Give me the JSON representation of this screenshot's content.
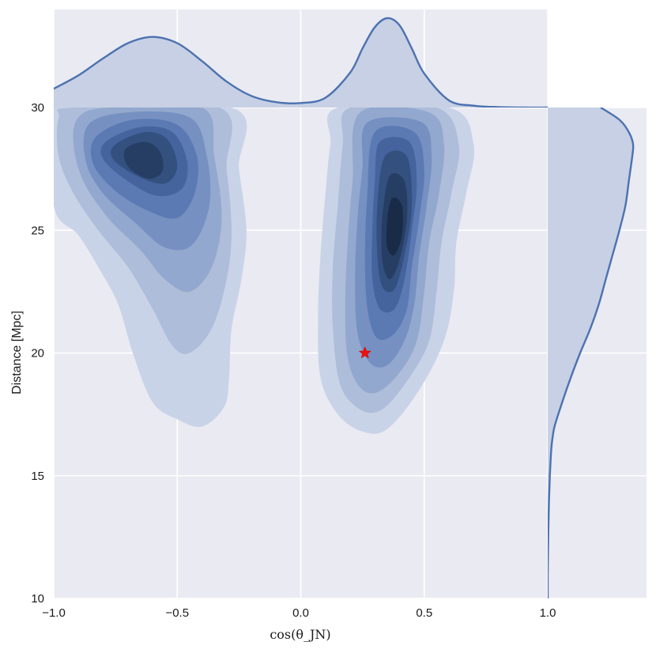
{
  "chart_data": {
    "type": "joint-kde",
    "xlabel": "cos(θ_JN)",
    "ylabel": "Distance [Mpc]",
    "xlim": [
      -1.0,
      1.0
    ],
    "ylim": [
      10,
      30
    ],
    "x_ticks": [
      -1.0,
      -0.5,
      0.0,
      0.5,
      1.0
    ],
    "x_tick_labels": [
      "−1.0",
      "−0.5",
      "0.0",
      "0.5",
      "1.0"
    ],
    "y_ticks": [
      10,
      15,
      20,
      25,
      30
    ],
    "y_tick_labels": [
      "10",
      "15",
      "20",
      "25",
      "30"
    ],
    "grid": true,
    "background": "#eaeaf2",
    "colors": {
      "line": "#4c72b0",
      "marginal_fill": "#c5cfe3",
      "levels": [
        "#c9d3e8",
        "#aebdd9",
        "#93a8ce",
        "#7690c2",
        "#5b79b3",
        "#45649e",
        "#33507f",
        "#263e64",
        "#1a2b47",
        "#0b1220"
      ],
      "marker": "#ee1111"
    },
    "modes": [
      {
        "center": {
          "x": -0.65,
          "y": 27.8
        },
        "levels": [
          {
            "level": 1,
            "points": [
              [
                -1.0,
                30.0
              ],
              [
                -0.28,
                30.0
              ],
              [
                -0.25,
                27.5
              ],
              [
                -0.22,
                25.0
              ],
              [
                -0.24,
                23.0
              ],
              [
                -0.28,
                21.0
              ],
              [
                -0.29,
                19.0
              ],
              [
                -0.31,
                17.8
              ],
              [
                -0.4,
                17.0
              ],
              [
                -0.5,
                17.3
              ],
              [
                -0.6,
                18.0
              ],
              [
                -0.68,
                20.0
              ],
              [
                -0.74,
                22.0
              ],
              [
                -0.82,
                23.5
              ],
              [
                -0.9,
                24.8
              ],
              [
                -1.0,
                26.0
              ]
            ]
          },
          {
            "level": 2,
            "points": [
              [
                -0.98,
                29.6
              ],
              [
                -0.92,
                30.0
              ],
              [
                -0.33,
                30.0
              ],
              [
                -0.3,
                27.5
              ],
              [
                -0.28,
                25.0
              ],
              [
                -0.3,
                23.0
              ],
              [
                -0.36,
                21.0
              ],
              [
                -0.45,
                20.0
              ],
              [
                -0.52,
                20.3
              ],
              [
                -0.6,
                21.8
              ],
              [
                -0.7,
                23.5
              ],
              [
                -0.82,
                25.0
              ],
              [
                -0.92,
                26.5
              ],
              [
                -0.98,
                28.0
              ]
            ]
          },
          {
            "level": 3,
            "points": [
              [
                -0.9,
                29.6
              ],
              [
                -0.78,
                30.0
              ],
              [
                -0.4,
                30.0
              ],
              [
                -0.35,
                28.0
              ],
              [
                -0.32,
                25.5
              ],
              [
                -0.36,
                23.5
              ],
              [
                -0.45,
                22.5
              ],
              [
                -0.55,
                23.0
              ],
              [
                -0.65,
                24.2
              ],
              [
                -0.78,
                25.5
              ],
              [
                -0.88,
                27.0
              ],
              [
                -0.92,
                28.5
              ]
            ]
          },
          {
            "level": 4,
            "points": [
              [
                -0.86,
                29.3
              ],
              [
                -0.7,
                29.8
              ],
              [
                -0.45,
                29.6
              ],
              [
                -0.38,
                28.0
              ],
              [
                -0.37,
                26.0
              ],
              [
                -0.44,
                24.4
              ],
              [
                -0.55,
                24.3
              ],
              [
                -0.67,
                25.3
              ],
              [
                -0.8,
                26.5
              ],
              [
                -0.87,
                27.8
              ]
            ]
          },
          {
            "level": 5,
            "points": [
              [
                -0.83,
                28.8
              ],
              [
                -0.68,
                29.5
              ],
              [
                -0.5,
                29.3
              ],
              [
                -0.42,
                28.0
              ],
              [
                -0.43,
                26.5
              ],
              [
                -0.5,
                25.5
              ],
              [
                -0.62,
                25.8
              ],
              [
                -0.75,
                26.6
              ],
              [
                -0.84,
                27.7
              ]
            ]
          },
          {
            "level": 6,
            "points": [
              [
                -0.79,
                28.6
              ],
              [
                -0.65,
                29.2
              ],
              [
                -0.52,
                29.0
              ],
              [
                -0.46,
                27.8
              ],
              [
                -0.48,
                26.7
              ],
              [
                -0.58,
                26.4
              ],
              [
                -0.7,
                27.0
              ],
              [
                -0.8,
                27.9
              ]
            ]
          },
          {
            "level": 7,
            "points": [
              [
                -0.75,
                28.5
              ],
              [
                -0.63,
                29.0
              ],
              [
                -0.54,
                28.7
              ],
              [
                -0.5,
                27.6
              ],
              [
                -0.55,
                26.9
              ],
              [
                -0.66,
                27.2
              ],
              [
                -0.76,
                27.9
              ]
            ]
          },
          {
            "level": 8,
            "points": [
              [
                -0.71,
                28.3
              ],
              [
                -0.63,
                28.6
              ],
              [
                -0.57,
                28.2
              ],
              [
                -0.56,
                27.4
              ],
              [
                -0.62,
                27.1
              ],
              [
                -0.7,
                27.6
              ]
            ]
          }
        ]
      },
      {
        "center": {
          "x": 0.35,
          "y": 24.5
        },
        "levels": [
          {
            "level": 1,
            "points": [
              [
                0.15,
                30.0
              ],
              [
                0.6,
                30.0
              ],
              [
                0.7,
                28.5
              ],
              [
                0.67,
                26.5
              ],
              [
                0.63,
                24.5
              ],
              [
                0.62,
                22.5
              ],
              [
                0.58,
                20.5
              ],
              [
                0.48,
                18.5
              ],
              [
                0.35,
                16.9
              ],
              [
                0.25,
                16.8
              ],
              [
                0.15,
                17.5
              ],
              [
                0.08,
                19.0
              ],
              [
                0.07,
                21.5
              ],
              [
                0.08,
                24.0
              ],
              [
                0.1,
                26.5
              ],
              [
                0.12,
                28.5
              ]
            ]
          },
          {
            "level": 2,
            "points": [
              [
                0.2,
                30.0
              ],
              [
                0.55,
                30.0
              ],
              [
                0.64,
                28.5
              ],
              [
                0.61,
                26.5
              ],
              [
                0.57,
                24.5
              ],
              [
                0.55,
                22.5
              ],
              [
                0.52,
                20.5
              ],
              [
                0.44,
                19.0
              ],
              [
                0.33,
                17.7
              ],
              [
                0.24,
                17.7
              ],
              [
                0.16,
                18.7
              ],
              [
                0.13,
                21.0
              ],
              [
                0.13,
                23.5
              ],
              [
                0.15,
                26.0
              ],
              [
                0.17,
                28.5
              ]
            ]
          },
          {
            "level": 3,
            "points": [
              [
                0.24,
                29.8
              ],
              [
                0.52,
                29.8
              ],
              [
                0.58,
                28.5
              ],
              [
                0.56,
                26.5
              ],
              [
                0.52,
                24.5
              ],
              [
                0.5,
                22.5
              ],
              [
                0.47,
                20.5
              ],
              [
                0.4,
                19.2
              ],
              [
                0.31,
                18.4
              ],
              [
                0.24,
                18.6
              ],
              [
                0.19,
                19.8
              ],
              [
                0.18,
                22.0
              ],
              [
                0.19,
                24.5
              ],
              [
                0.21,
                27.0
              ]
            ]
          },
          {
            "level": 4,
            "points": [
              [
                0.27,
                29.4
              ],
              [
                0.49,
                29.4
              ],
              [
                0.53,
                28.0
              ],
              [
                0.51,
                26.0
              ],
              [
                0.48,
                24.0
              ],
              [
                0.46,
                22.0
              ],
              [
                0.42,
                20.5
              ],
              [
                0.35,
                19.5
              ],
              [
                0.28,
                19.6
              ],
              [
                0.23,
                20.8
              ],
              [
                0.22,
                23.0
              ],
              [
                0.23,
                25.5
              ],
              [
                0.25,
                27.5
              ]
            ]
          },
          {
            "level": 5,
            "points": [
              [
                0.3,
                29.0
              ],
              [
                0.46,
                29.0
              ],
              [
                0.5,
                27.5
              ],
              [
                0.48,
                25.5
              ],
              [
                0.45,
                23.5
              ],
              [
                0.43,
                21.8
              ],
              [
                0.38,
                20.8
              ],
              [
                0.31,
                20.6
              ],
              [
                0.27,
                21.8
              ],
              [
                0.26,
                24.0
              ],
              [
                0.27,
                26.5
              ]
            ]
          },
          {
            "level": 6,
            "points": [
              [
                0.32,
                28.6
              ],
              [
                0.44,
                28.6
              ],
              [
                0.47,
                27.0
              ],
              [
                0.45,
                25.0
              ],
              [
                0.42,
                23.0
              ],
              [
                0.38,
                21.8
              ],
              [
                0.32,
                21.8
              ],
              [
                0.29,
                23.0
              ],
              [
                0.29,
                25.0
              ],
              [
                0.3,
                27.0
              ]
            ]
          },
          {
            "level": 7,
            "points": [
              [
                0.34,
                28.0
              ],
              [
                0.43,
                28.0
              ],
              [
                0.45,
                26.0
              ],
              [
                0.42,
                24.0
              ],
              [
                0.38,
                22.6
              ],
              [
                0.33,
                22.7
              ],
              [
                0.31,
                24.0
              ],
              [
                0.31,
                26.0
              ]
            ]
          },
          {
            "level": 8,
            "points": [
              [
                0.36,
                27.2
              ],
              [
                0.42,
                27.0
              ],
              [
                0.43,
                25.5
              ],
              [
                0.4,
                23.8
              ],
              [
                0.36,
                23.0
              ],
              [
                0.33,
                23.8
              ],
              [
                0.33,
                25.5
              ]
            ]
          },
          {
            "level": 9,
            "points": [
              [
                0.37,
                26.3
              ],
              [
                0.41,
                26.0
              ],
              [
                0.41,
                24.8
              ],
              [
                0.38,
                24.0
              ],
              [
                0.35,
                24.3
              ],
              [
                0.35,
                25.4
              ]
            ]
          }
        ]
      }
    ],
    "marker_point": {
      "x": 0.26,
      "y": 20.0,
      "symbol": "star"
    },
    "marginal_x": {
      "x": [
        -1.0,
        -0.9,
        -0.8,
        -0.7,
        -0.6,
        -0.5,
        -0.4,
        -0.3,
        -0.2,
        -0.1,
        0.0,
        0.1,
        0.2,
        0.25,
        0.3,
        0.35,
        0.4,
        0.45,
        0.5,
        0.6,
        0.7,
        0.8,
        0.9,
        1.0
      ],
      "density": [
        0.21,
        0.36,
        0.55,
        0.72,
        0.79,
        0.72,
        0.52,
        0.29,
        0.13,
        0.06,
        0.05,
        0.11,
        0.39,
        0.66,
        0.9,
        1.0,
        0.92,
        0.66,
        0.38,
        0.08,
        0.02,
        0.005,
        0.0,
        0.0
      ]
    },
    "marginal_y": {
      "y": [
        10,
        11,
        12,
        13,
        14,
        15,
        16,
        16.5,
        17,
        18,
        19,
        20,
        21,
        22,
        23,
        24,
        25,
        26,
        27,
        28,
        28.5,
        29,
        29.5,
        30
      ],
      "density": [
        0.0,
        0.0,
        0.004,
        0.008,
        0.015,
        0.025,
        0.04,
        0.055,
        0.08,
        0.17,
        0.27,
        0.38,
        0.5,
        0.6,
        0.68,
        0.76,
        0.84,
        0.91,
        0.95,
        0.99,
        1.0,
        0.95,
        0.84,
        0.62
      ]
    }
  }
}
